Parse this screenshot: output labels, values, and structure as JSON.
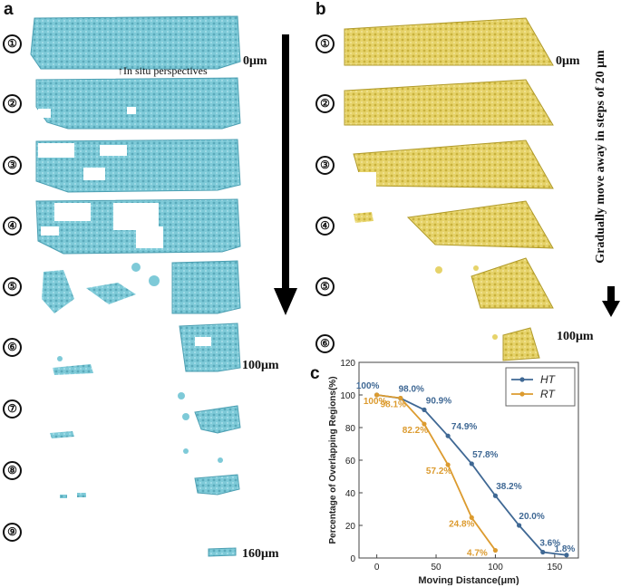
{
  "panels": {
    "a": "a",
    "b": "b",
    "c": "c"
  },
  "markers": [
    "①",
    "②",
    "③",
    "④",
    "⑤",
    "⑥",
    "⑦",
    "⑧",
    "⑨"
  ],
  "distance_labels": {
    "start": "0μm",
    "mid": "100μm",
    "end": "160μm"
  },
  "perspective_note": "In situ perspectives",
  "side_note": "Gradually move away in steps of 20 μm",
  "colors": {
    "blue_scan": "#7ecad8",
    "gold_scan": "#e6d36a",
    "ht": "#3f6894",
    "rt": "#dc9b2f"
  },
  "chart_data": {
    "type": "line",
    "xlabel": "Moving Distance(μm)",
    "ylabel": "Percentage of Overlapping Regions(%)",
    "xlim": [
      -15,
      170
    ],
    "ylim": [
      0,
      120
    ],
    "xticks": [
      0,
      50,
      100,
      150
    ],
    "yticks": [
      0,
      20,
      40,
      60,
      80,
      100,
      120
    ],
    "legend_position": "top-right",
    "series": [
      {
        "name": "HT",
        "color": "#3f6894",
        "x": [
          0,
          20,
          40,
          60,
          80,
          100,
          120,
          140,
          160
        ],
        "values": [
          100,
          98.0,
          90.9,
          74.9,
          57.8,
          38.2,
          20.0,
          3.6,
          1.8
        ],
        "labels": [
          "100%",
          "98.0%",
          "90.9%",
          "74.9%",
          "57.8%",
          "38.2%",
          "20.0%",
          "3.6%",
          "1.8%"
        ]
      },
      {
        "name": "RT",
        "color": "#dc9b2f",
        "x": [
          0,
          20,
          40,
          60,
          80,
          100
        ],
        "values": [
          100,
          98.1,
          82.2,
          57.2,
          24.8,
          4.7
        ],
        "labels": [
          "100%",
          "98.1%",
          "82.2%",
          "57.2%",
          "24.8%",
          "4.7%"
        ]
      }
    ]
  }
}
